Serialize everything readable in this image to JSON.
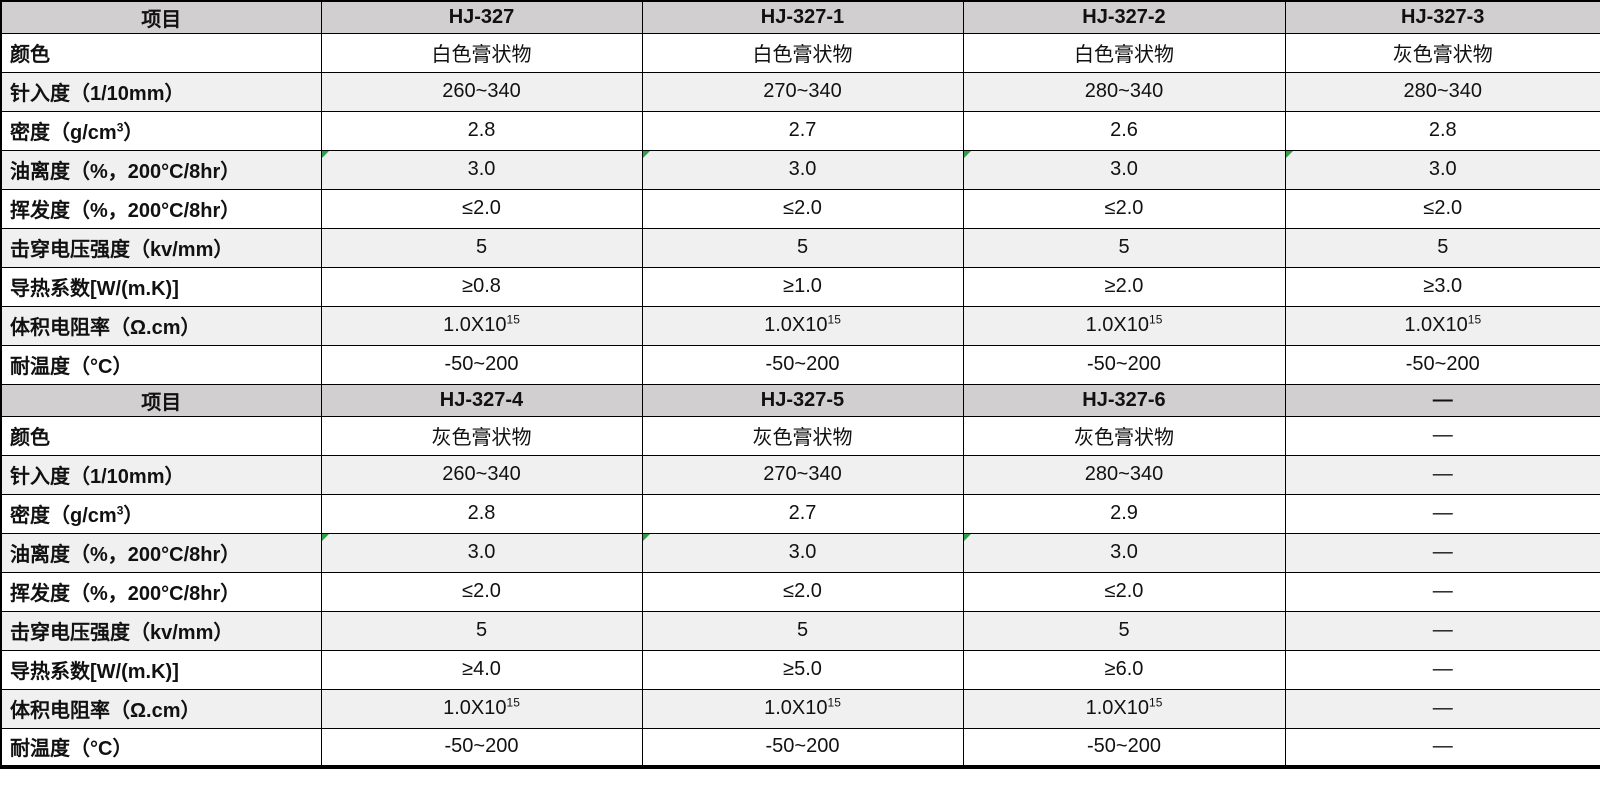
{
  "colors": {
    "header_bg": "#d1cfcf",
    "alt_row_bg": "#f1f0f0",
    "border": "#000000",
    "marker_green": "#2f9e44",
    "text": "#111111"
  },
  "table": {
    "columns": 5,
    "sections": [
      {
        "header": [
          "项目",
          "HJ-327",
          "HJ-327-1",
          "HJ-327-2",
          "HJ-327-3"
        ],
        "rows": [
          {
            "label": "颜色",
            "values": [
              "白色膏状物",
              "白色膏状物",
              "白色膏状物",
              "灰色膏状物"
            ],
            "markers": [
              false,
              false,
              false,
              false
            ]
          },
          {
            "label": "针入度（1/10mm）",
            "values": [
              "260~340",
              "270~340",
              "280~340",
              "280~340"
            ],
            "markers": [
              false,
              false,
              false,
              false
            ]
          },
          {
            "label": "密度（g/cm^3^）",
            "values": [
              "2.8",
              "2.7",
              "2.6",
              "2.8"
            ],
            "markers": [
              false,
              false,
              false,
              false
            ]
          },
          {
            "label": "油离度（%，200°C/8hr）",
            "values": [
              "3.0",
              "3.0",
              "3.0",
              "3.0"
            ],
            "markers": [
              true,
              true,
              true,
              true
            ]
          },
          {
            "label": "挥发度（%，200°C/8hr）",
            "values": [
              "≤2.0",
              "≤2.0",
              "≤2.0",
              "≤2.0"
            ],
            "markers": [
              false,
              false,
              false,
              false
            ]
          },
          {
            "label": "击穿电压强度（kv/mm）",
            "values": [
              "5",
              "5",
              "5",
              "5"
            ],
            "markers": [
              false,
              false,
              false,
              false
            ]
          },
          {
            "label": "导热系数[W/(m.K)]",
            "values": [
              "≥0.8",
              "≥1.0",
              "≥2.0",
              "≥3.0"
            ],
            "markers": [
              false,
              false,
              false,
              false
            ]
          },
          {
            "label": "体积电阻率（Ω.cm）",
            "values": [
              "1.0X10^15^",
              "1.0X10^15^",
              "1.0X10^15^",
              "1.0X10^15^"
            ],
            "markers": [
              false,
              false,
              false,
              false
            ]
          },
          {
            "label": "耐温度（°C）",
            "values": [
              "-50~200",
              "-50~200",
              "-50~200",
              "-50~200"
            ],
            "markers": [
              false,
              false,
              false,
              false
            ]
          }
        ]
      },
      {
        "header": [
          "项目",
          "HJ-327-4",
          "HJ-327-5",
          "HJ-327-6",
          "—"
        ],
        "rows": [
          {
            "label": "颜色",
            "values": [
              "灰色膏状物",
              "灰色膏状物",
              "灰色膏状物",
              "—"
            ],
            "markers": [
              false,
              false,
              false,
              false
            ]
          },
          {
            "label": "针入度（1/10mm）",
            "values": [
              "260~340",
              "270~340",
              "280~340",
              "—"
            ],
            "markers": [
              false,
              false,
              false,
              false
            ]
          },
          {
            "label": "密度（g/cm^3^）",
            "values": [
              "2.8",
              "2.7",
              "2.9",
              "—"
            ],
            "markers": [
              false,
              false,
              false,
              false
            ]
          },
          {
            "label": "油离度（%，200°C/8hr）",
            "values": [
              "3.0",
              "3.0",
              "3.0",
              "—"
            ],
            "markers": [
              true,
              true,
              true,
              false
            ]
          },
          {
            "label": "挥发度（%，200°C/8hr）",
            "values": [
              "≤2.0",
              "≤2.0",
              "≤2.0",
              "—"
            ],
            "markers": [
              false,
              false,
              false,
              false
            ]
          },
          {
            "label": "击穿电压强度（kv/mm）",
            "values": [
              "5",
              "5",
              "5",
              "—"
            ],
            "markers": [
              false,
              false,
              false,
              false
            ]
          },
          {
            "label": "导热系数[W/(m.K)]",
            "values": [
              "≥4.0",
              "≥5.0",
              "≥6.0",
              "—"
            ],
            "markers": [
              false,
              false,
              false,
              false
            ]
          },
          {
            "label": "体积电阻率（Ω.cm）",
            "values": [
              "1.0X10^15^",
              "1.0X10^15^",
              "1.0X10^15^",
              "—"
            ],
            "markers": [
              false,
              false,
              false,
              false
            ]
          },
          {
            "label": "耐温度（°C）",
            "values": [
              "-50~200",
              "-50~200",
              "-50~200",
              "—"
            ],
            "markers": [
              false,
              false,
              false,
              false
            ]
          }
        ]
      }
    ]
  }
}
